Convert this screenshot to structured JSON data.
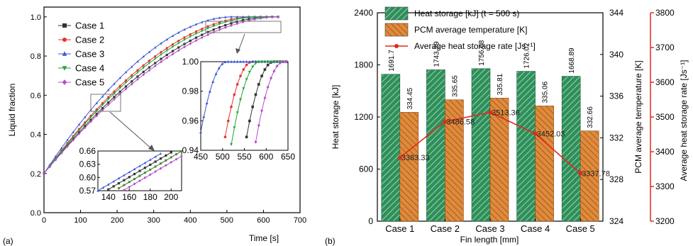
{
  "chart_data": [
    {
      "panel_label": "(a)",
      "type": "line",
      "xlabel": "Time [s]",
      "ylabel": "Liquid fraction",
      "xlim": [
        0,
        700
      ],
      "ylim": [
        0.0,
        1.05
      ],
      "x_ticks": [
        "0",
        "100",
        "200",
        "300",
        "400",
        "500",
        "600",
        "700"
      ],
      "y_ticks": [
        "0.0",
        "0.2",
        "0.4",
        "0.6",
        "0.8",
        "1.0"
      ],
      "legend": "top-left",
      "series": [
        {
          "name": "Case 1",
          "marker": "square",
          "color": "#333333",
          "end_time": 617
        },
        {
          "name": "Case 2",
          "marker": "circle",
          "color": "#e8312a",
          "end_time": 568
        },
        {
          "name": "Case 3",
          "marker": "triangle-up",
          "color": "#3957d1",
          "end_time": 510
        },
        {
          "name": "Case 4",
          "marker": "triangle-down",
          "color": "#1fa33a",
          "end_time": 585
        },
        {
          "name": "Case 5",
          "marker": "diamond",
          "color": "#b34fc8",
          "end_time": 640
        }
      ],
      "insets": [
        {
          "name": "zoom-top-right",
          "xlim": [
            450,
            650
          ],
          "ylim": [
            0.94,
            1.0
          ],
          "x_ticks": [
            "450",
            "500",
            "550",
            "600",
            "650"
          ],
          "y_ticks": [
            "0.94",
            "0.96",
            "0.98",
            "1.00"
          ]
        },
        {
          "name": "zoom-middle",
          "xlim": [
            130,
            210
          ],
          "ylim": [
            0.57,
            0.66
          ],
          "x_ticks": [
            "140",
            "160",
            "180",
            "200"
          ],
          "y_ticks": [
            "0.57",
            "0.60",
            "0.63",
            "0.66"
          ]
        }
      ]
    },
    {
      "panel_label": "(b)",
      "type": "bar",
      "xlabel": "Fin length [mm]",
      "categories": [
        "Case 1",
        "Case 2",
        "Case 3",
        "Case 4",
        "Case 5"
      ],
      "ylabel": "Heat storage [kJ]",
      "ylim": [
        0,
        2400
      ],
      "y_ticks": [
        "0",
        "600",
        "1200",
        "1800",
        "2400"
      ],
      "y2label": "PCM average temperature [K]",
      "y2lim": [
        324,
        344
      ],
      "y2_ticks": [
        "324",
        "328",
        "332",
        "336",
        "340",
        "344"
      ],
      "y3label": "Average heat storage rate [Js⁻¹]",
      "y3lim": [
        3200,
        3800
      ],
      "y3_ticks": [
        "3200",
        "3300",
        "3400",
        "3500",
        "3600",
        "3700",
        "3800"
      ],
      "legend": "top-left",
      "colors": {
        "heat": "#2f8f5a",
        "temp": "#e08a3c",
        "rate": "#dd2b22"
      },
      "series": [
        {
          "name": "Heat storage [kJ] (t = 500 s)",
          "kind": "bar",
          "axis": "left",
          "values": [
            1691.7,
            1743.29,
            1756.68,
            1726.02,
            1668.89
          ],
          "labels": [
            "1691.7",
            "1743.29",
            "1756.68",
            "1726.02",
            "1668.89"
          ]
        },
        {
          "name": "PCM average temperature [K]",
          "kind": "bar",
          "axis": "right",
          "values": [
            334.45,
            335.65,
            335.81,
            335.06,
            332.66
          ],
          "labels": [
            "334.45",
            "335.65",
            "335.81",
            "335.06",
            "332.66"
          ]
        },
        {
          "name": "Average heat storage rate [Js⁻¹]",
          "kind": "line",
          "axis": "far-right",
          "values": [
            3383.33,
            3486.58,
            3513.36,
            3452.03,
            3337.78
          ],
          "labels": [
            "3383.33",
            "3486.58",
            "3513.36",
            "3452.03",
            "3337.78"
          ]
        }
      ]
    }
  ]
}
